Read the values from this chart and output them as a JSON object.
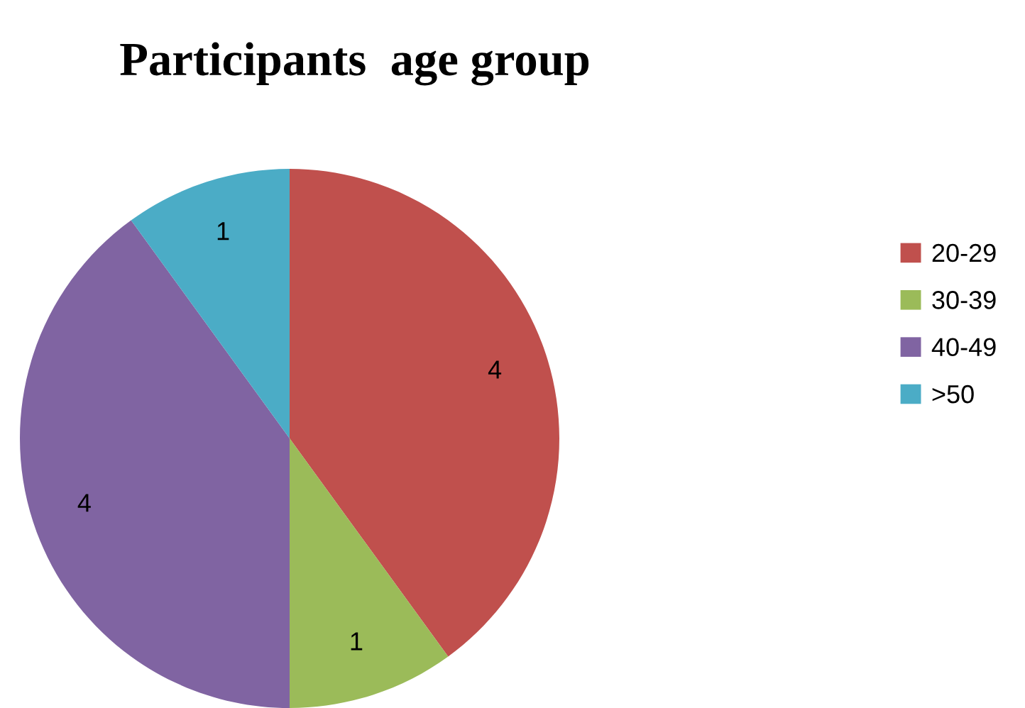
{
  "chart_data": {
    "type": "pie",
    "title": "Participants  age group",
    "categories": [
      "20-29",
      "30-39",
      "40-49",
      ">50"
    ],
    "values": [
      4,
      1,
      4,
      1
    ],
    "colors": [
      "#c0504d",
      "#9bbb59",
      "#8064a2",
      "#4bacc6"
    ],
    "data_labels": true,
    "legend": "right"
  }
}
